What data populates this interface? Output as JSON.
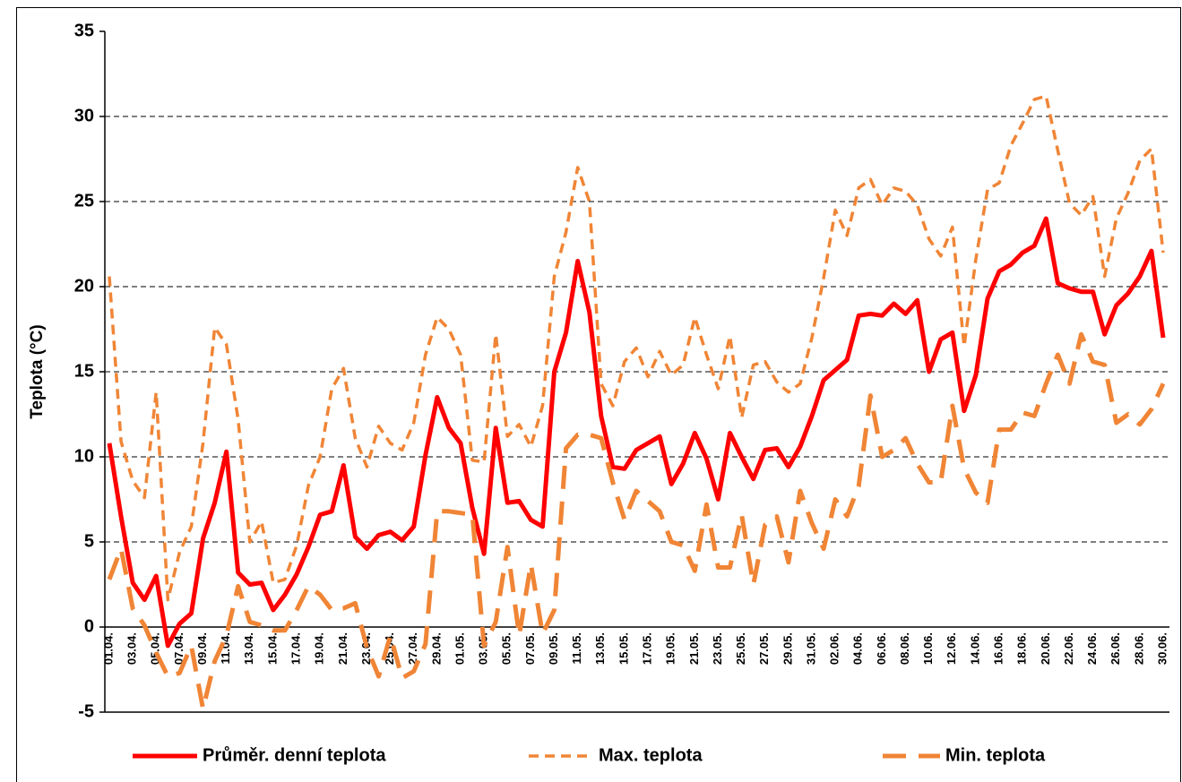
{
  "chart_data": {
    "type": "line",
    "y_label": "Teplota (°C)",
    "categories": [
      "01.04.",
      null,
      "03.04.",
      null,
      "05.04.",
      null,
      "07.04.",
      null,
      "09.04.",
      null,
      "11.04.",
      null,
      "13.04.",
      null,
      "15.04.",
      null,
      "17.04.",
      null,
      "19.04.",
      null,
      "21.04.",
      null,
      "23.04.",
      null,
      "25.04.",
      null,
      "27.04.",
      null,
      "29.04.",
      null,
      "01.05.",
      null,
      "03.05.",
      null,
      "05.05.",
      null,
      "07.05.",
      null,
      "09.05.",
      null,
      "11.05.",
      null,
      "13.05.",
      null,
      "15.05.",
      null,
      "17.05.",
      null,
      "19.05.",
      null,
      "21.05.",
      null,
      "23.05.",
      null,
      "25.05.",
      null,
      "27.05.",
      null,
      "29.05.",
      null,
      "31.05.",
      null,
      "02.06.",
      null,
      "04.06.",
      null,
      "06.06.",
      null,
      "08.06.",
      null,
      "10.06.",
      null,
      "12.06.",
      null,
      "14.06.",
      null,
      "16.06.",
      null,
      "18.06.",
      null,
      "20.06.",
      null,
      "22.06.",
      null,
      "24.06.",
      null,
      "26.06.",
      null,
      "28.06.",
      null,
      "30.06."
    ],
    "series": [
      {
        "name": "Průměr. denní teplota",
        "color": "#ff0000",
        "dash": "solid",
        "values": [
          10.8,
          6.5,
          2.6,
          1.6,
          3.0,
          -1.1,
          0.2,
          0.8,
          5.2,
          7.3,
          10.3,
          3.2,
          2.5,
          2.6,
          1.0,
          1.9,
          3.1,
          4.7,
          6.6,
          6.8,
          9.5,
          5.3,
          4.6,
          5.4,
          5.6,
          5.1,
          5.9,
          10.1,
          13.5,
          11.7,
          10.8,
          7.0,
          4.3,
          11.7,
          7.3,
          7.4,
          6.3,
          5.9,
          15.0,
          17.3,
          21.5,
          18.5,
          12.4,
          9.4,
          9.3,
          10.4,
          10.8,
          11.2,
          8.4,
          9.6,
          11.4,
          9.9,
          7.5,
          11.4,
          10.0,
          8.7,
          10.4,
          10.5,
          9.4,
          10.6,
          12.4,
          14.5,
          15.1,
          15.7,
          18.3,
          18.4,
          18.3,
          19.0,
          18.4,
          19.2,
          15.0,
          16.9,
          17.3,
          12.7,
          14.8,
          19.3,
          20.9,
          21.3,
          22.0,
          22.4,
          24.0,
          20.2,
          19.9,
          19.7,
          19.7,
          17.2,
          18.9,
          19.6,
          20.6,
          22.1,
          17.0
        ]
      },
      {
        "name": "Max. teplota",
        "color": "#f08536",
        "dash": "short",
        "values": [
          20.6,
          10.9,
          8.6,
          7.6,
          13.8,
          1.6,
          4.4,
          5.9,
          10.8,
          17.6,
          16.6,
          12.2,
          5.0,
          6.2,
          2.6,
          2.8,
          4.8,
          8.3,
          10.0,
          14.0,
          15.2,
          11.1,
          9.4,
          11.8,
          10.8,
          10.4,
          12.0,
          16.0,
          18.2,
          17.5,
          16.0,
          9.8,
          9.7,
          17.2,
          11.2,
          11.9,
          10.6,
          13.0,
          20.6,
          23.2,
          27.0,
          25.0,
          14.3,
          13.0,
          15.6,
          16.4,
          14.7,
          16.2,
          14.8,
          15.4,
          18.2,
          16.0,
          14.0,
          17.1,
          12.3,
          15.4,
          15.6,
          14.4,
          13.8,
          14.3,
          17.0,
          20.5,
          24.5,
          23.0,
          25.8,
          26.3,
          24.8,
          25.8,
          25.6,
          24.8,
          22.8,
          21.8,
          23.5,
          16.5,
          21.6,
          25.7,
          26.1,
          28.3,
          29.6,
          31.0,
          31.2,
          28.0,
          24.9,
          24.2,
          25.3,
          20.6,
          24.0,
          25.5,
          27.4,
          28.1,
          22.0
        ]
      },
      {
        "name": "Min. teplota",
        "color": "#f08536",
        "dash": "long",
        "values": [
          2.8,
          4.6,
          1.1,
          0.1,
          -1.5,
          -2.9,
          -2.7,
          -1.1,
          -4.8,
          -2.0,
          -0.5,
          2.4,
          0.3,
          0.1,
          -0.2,
          -0.2,
          1.0,
          2.4,
          1.9,
          1.0,
          1.1,
          1.4,
          -1.2,
          -2.9,
          -0.5,
          -3.0,
          -2.6,
          -1.0,
          6.8,
          6.8,
          6.7,
          6.6,
          -1.1,
          0.3,
          4.7,
          -0.5,
          3.7,
          -0.4,
          1.0,
          10.5,
          11.3,
          11.3,
          11.1,
          8.5,
          6.3,
          8.0,
          7.4,
          6.8,
          5.0,
          4.8,
          3.3,
          7.2,
          3.5,
          3.5,
          6.6,
          2.5,
          6.0,
          6.5,
          3.8,
          8.0,
          6.1,
          4.6,
          7.5,
          6.5,
          8.3,
          13.6,
          10.0,
          10.4,
          11.1,
          9.6,
          8.5,
          8.5,
          13.0,
          9.3,
          7.9,
          7.3,
          11.6,
          11.6,
          12.6,
          12.4,
          14.3,
          16.0,
          14.3,
          17.2,
          15.6,
          15.4,
          12.0,
          12.5,
          11.9,
          12.8,
          14.3
        ]
      }
    ],
    "ylim": [
      -5,
      35
    ],
    "yticks": [
      -5,
      0,
      5,
      10,
      15,
      20,
      25,
      30,
      35
    ],
    "grid": true,
    "legend": "bottom"
  }
}
